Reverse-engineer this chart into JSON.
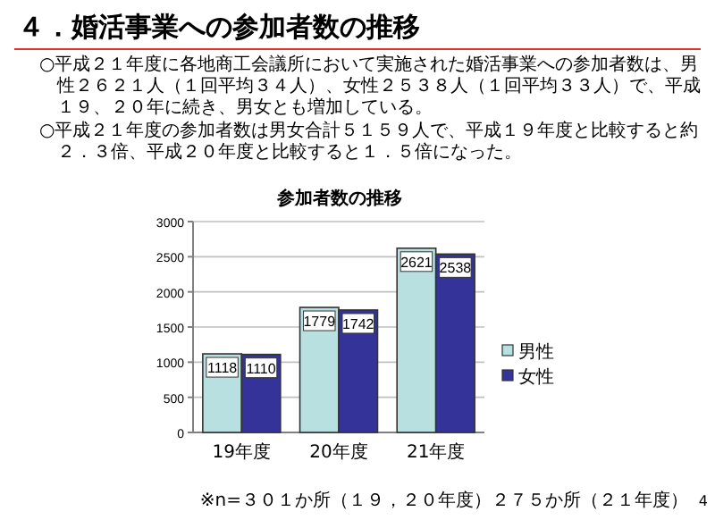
{
  "chart_data": {
    "type": "bar",
    "title": "４．婚活事業への参加者数の推移",
    "subtitle": "参加者数の推移",
    "annotations": [
      "○平成２１年度に各地商工会議所において実施された婚活事業への参加者数は、男性２６２１人（１回平均３４人）、女性２５３８人（１回平均３３人）で、平成１９、２０年に続き、男女とも増加している。",
      "○平成２１年度の参加者数は男女合計５１５９人で、平成１９年度と比較すると約２．３倍、平成２０年度と比較すると１．５倍になった。",
      "※n=３０１か所（１９，２０年度）２７５か所（２１年度）",
      "4"
    ],
    "categories": [
      "19年度",
      "20年度",
      "21年度"
    ],
    "series": [
      {
        "name": "男性",
        "color": "#b8e0e0",
        "values": [
          1118,
          1779,
          2621
        ]
      },
      {
        "name": "女性",
        "color": "#333399",
        "values": [
          1110,
          1742,
          2538
        ]
      }
    ],
    "ylim": [
      0,
      3000
    ],
    "yticks": [
      0,
      500,
      1000,
      1500,
      2000,
      2500,
      3000
    ],
    "grid": "y",
    "legend": "right",
    "data_labels": true
  }
}
